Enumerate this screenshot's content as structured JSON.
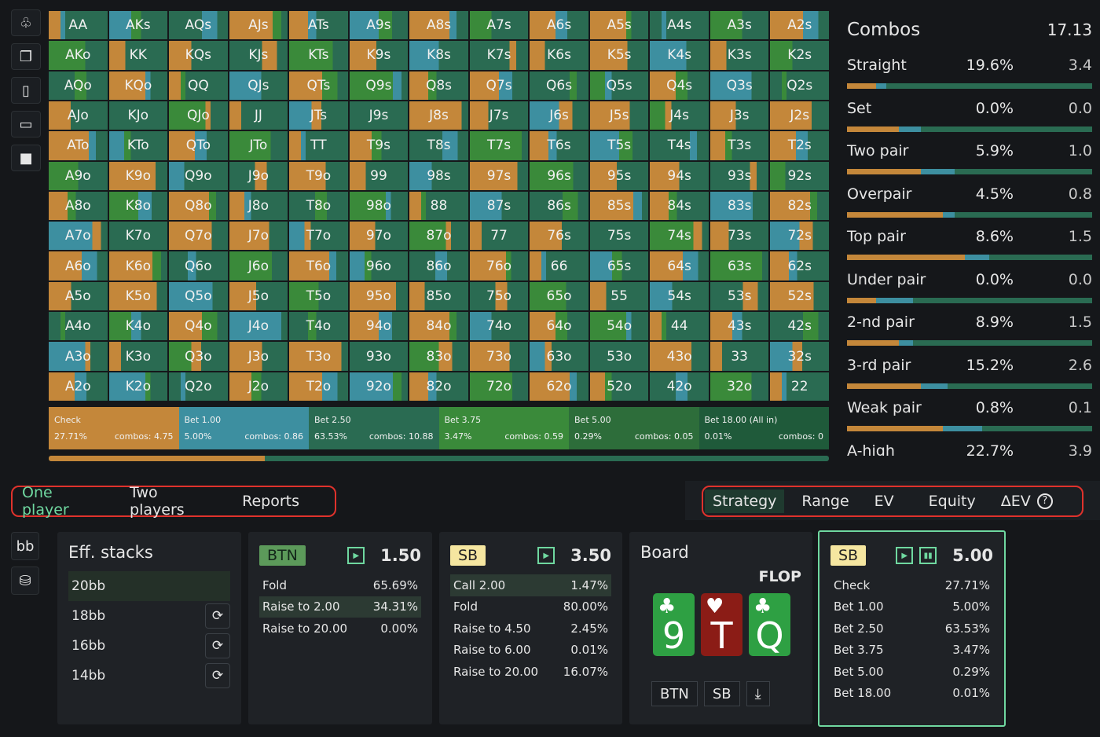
{
  "colors": {
    "check": "#c4873a",
    "bet1": "#3d8fa0",
    "bet2": "#2a6b52",
    "bet3": "#3a8a3a",
    "bet4": "#2d6d3a",
    "allin": "#1f5a3a"
  },
  "toolbar": {
    "icons": [
      "club-icon",
      "copy-icon",
      "cards-icon",
      "chat-icon",
      "square-icon"
    ]
  },
  "grid": {
    "rows": [
      [
        "AA",
        "AKs",
        "AQs",
        "AJs",
        "ATs",
        "A9s",
        "A8s",
        "A7s",
        "A6s",
        "A5s",
        "A4s",
        "A3s",
        "A2s"
      ],
      [
        "AKo",
        "KK",
        "KQs",
        "KJs",
        "KTs",
        "K9s",
        "K8s",
        "K7s",
        "K6s",
        "K5s",
        "K4s",
        "K3s",
        "K2s"
      ],
      [
        "AQo",
        "KQo",
        "QQ",
        "QJs",
        "QTs",
        "Q9s",
        "Q8s",
        "Q7s",
        "Q6s",
        "Q5s",
        "Q4s",
        "Q3s",
        "Q2s"
      ],
      [
        "AJo",
        "KJo",
        "QJo",
        "JJ",
        "JTs",
        "J9s",
        "J8s",
        "J7s",
        "J6s",
        "J5s",
        "J4s",
        "J3s",
        "J2s"
      ],
      [
        "ATo",
        "KTo",
        "QTo",
        "JTo",
        "TT",
        "T9s",
        "T8s",
        "T7s",
        "T6s",
        "T5s",
        "T4s",
        "T3s",
        "T2s"
      ],
      [
        "A9o",
        "K9o",
        "Q9o",
        "J9o",
        "T9o",
        "99",
        "98s",
        "97s",
        "96s",
        "95s",
        "94s",
        "93s",
        "92s"
      ],
      [
        "A8o",
        "K8o",
        "Q8o",
        "J8o",
        "T8o",
        "98o",
        "88",
        "87s",
        "86s",
        "85s",
        "84s",
        "83s",
        "82s"
      ],
      [
        "A7o",
        "K7o",
        "Q7o",
        "J7o",
        "T7o",
        "97o",
        "87o",
        "77",
        "76s",
        "75s",
        "74s",
        "73s",
        "72s"
      ],
      [
        "A6o",
        "K6o",
        "Q6o",
        "J6o",
        "T6o",
        "96o",
        "86o",
        "76o",
        "66",
        "65s",
        "64s",
        "63s",
        "62s"
      ],
      [
        "A5o",
        "K5o",
        "Q5o",
        "J5o",
        "T5o",
        "95o",
        "85o",
        "75o",
        "65o",
        "55",
        "54s",
        "53s",
        "52s"
      ],
      [
        "A4o",
        "K4o",
        "Q4o",
        "J4o",
        "T4o",
        "94o",
        "84o",
        "74o",
        "64o",
        "54o",
        "44",
        "43s",
        "42s"
      ],
      [
        "A3o",
        "K3o",
        "Q3o",
        "J3o",
        "T3o",
        "93o",
        "83o",
        "73o",
        "63o",
        "53o",
        "43o",
        "33",
        "32s"
      ],
      [
        "A2o",
        "K2o",
        "Q2o",
        "J2o",
        "T2o",
        "92o",
        "82o",
        "72o",
        "62o",
        "52o",
        "42o",
        "32o",
        "22"
      ]
    ]
  },
  "actions": [
    {
      "name": "Check",
      "pct": "27.71%",
      "combos": "combos: 4.75"
    },
    {
      "name": "Bet 1.00",
      "pct": "5.00%",
      "combos": "combos: 0.86"
    },
    {
      "name": "Bet 2.50",
      "pct": "63.53%",
      "combos": "combos: 10.88"
    },
    {
      "name": "Bet 3.75",
      "pct": "3.47%",
      "combos": "combos: 0.59"
    },
    {
      "name": "Bet 5.00",
      "pct": "0.29%",
      "combos": "combos: 0.05"
    },
    {
      "name": "Bet 18.00 (All in)",
      "pct": "0.01%",
      "combos": "combos: 0"
    }
  ],
  "combos": {
    "title": "Combos",
    "total": "17.13",
    "rows": [
      {
        "name": "Straight",
        "pct": "19.6%",
        "count": "3.4"
      },
      {
        "name": "Set",
        "pct": "0.0%",
        "count": "0.0"
      },
      {
        "name": "Two pair",
        "pct": "5.9%",
        "count": "1.0"
      },
      {
        "name": "Overpair",
        "pct": "4.5%",
        "count": "0.8"
      },
      {
        "name": "Top pair",
        "pct": "8.6%",
        "count": "1.5"
      },
      {
        "name": "Under pair",
        "pct": "0.0%",
        "count": "0.0"
      },
      {
        "name": "2-nd pair",
        "pct": "8.9%",
        "count": "1.5"
      },
      {
        "name": "3-rd pair",
        "pct": "15.2%",
        "count": "2.6"
      },
      {
        "name": "Weak pair",
        "pct": "0.8%",
        "count": "0.1"
      },
      {
        "name": "A-high",
        "pct": "22.7%",
        "count": "3.9"
      }
    ]
  },
  "tabs_left": [
    "One player",
    "Two players",
    "Reports"
  ],
  "tabs_right": [
    "Strategy",
    "Range",
    "EV",
    "Equity",
    "ΔEV"
  ],
  "side": {
    "bb": "bb"
  },
  "stacks": {
    "title": "Eff. stacks",
    "items": [
      "20bb",
      "18bb",
      "16bb",
      "14bb"
    ]
  },
  "btn_panel": {
    "pos": "BTN",
    "amount": "1.50",
    "rows": [
      [
        "Fold",
        "65.69%"
      ],
      [
        "Raise to 2.00",
        "34.31%"
      ],
      [
        "Raise to 20.00",
        "0.00%"
      ]
    ]
  },
  "sb_panel": {
    "pos": "SB",
    "amount": "3.50",
    "rows": [
      [
        "Call 2.00",
        "1.47%"
      ],
      [
        "Fold",
        "80.00%"
      ],
      [
        "Raise to 4.50",
        "2.45%"
      ],
      [
        "Raise to 6.00",
        "0.01%"
      ],
      [
        "Raise to 20.00",
        "16.07%"
      ]
    ]
  },
  "board": {
    "title": "Board",
    "street": "FLOP",
    "cards": [
      {
        "suit": "♣",
        "rank": "9",
        "color": "#2ea043"
      },
      {
        "suit": "♥",
        "rank": "T",
        "color": "#8b1c16"
      },
      {
        "suit": "♣",
        "rank": "Q",
        "color": "#2ea043"
      }
    ],
    "buttons": [
      "BTN",
      "SB"
    ]
  },
  "sb_panel2": {
    "pos": "SB",
    "amount": "5.00",
    "rows": [
      [
        "Check",
        "27.71%"
      ],
      [
        "Bet 1.00",
        "5.00%"
      ],
      [
        "Bet 2.50",
        "63.53%"
      ],
      [
        "Bet 3.75",
        "3.47%"
      ],
      [
        "Bet 5.00",
        "0.29%"
      ],
      [
        "Bet 18.00",
        "0.01%"
      ]
    ]
  }
}
